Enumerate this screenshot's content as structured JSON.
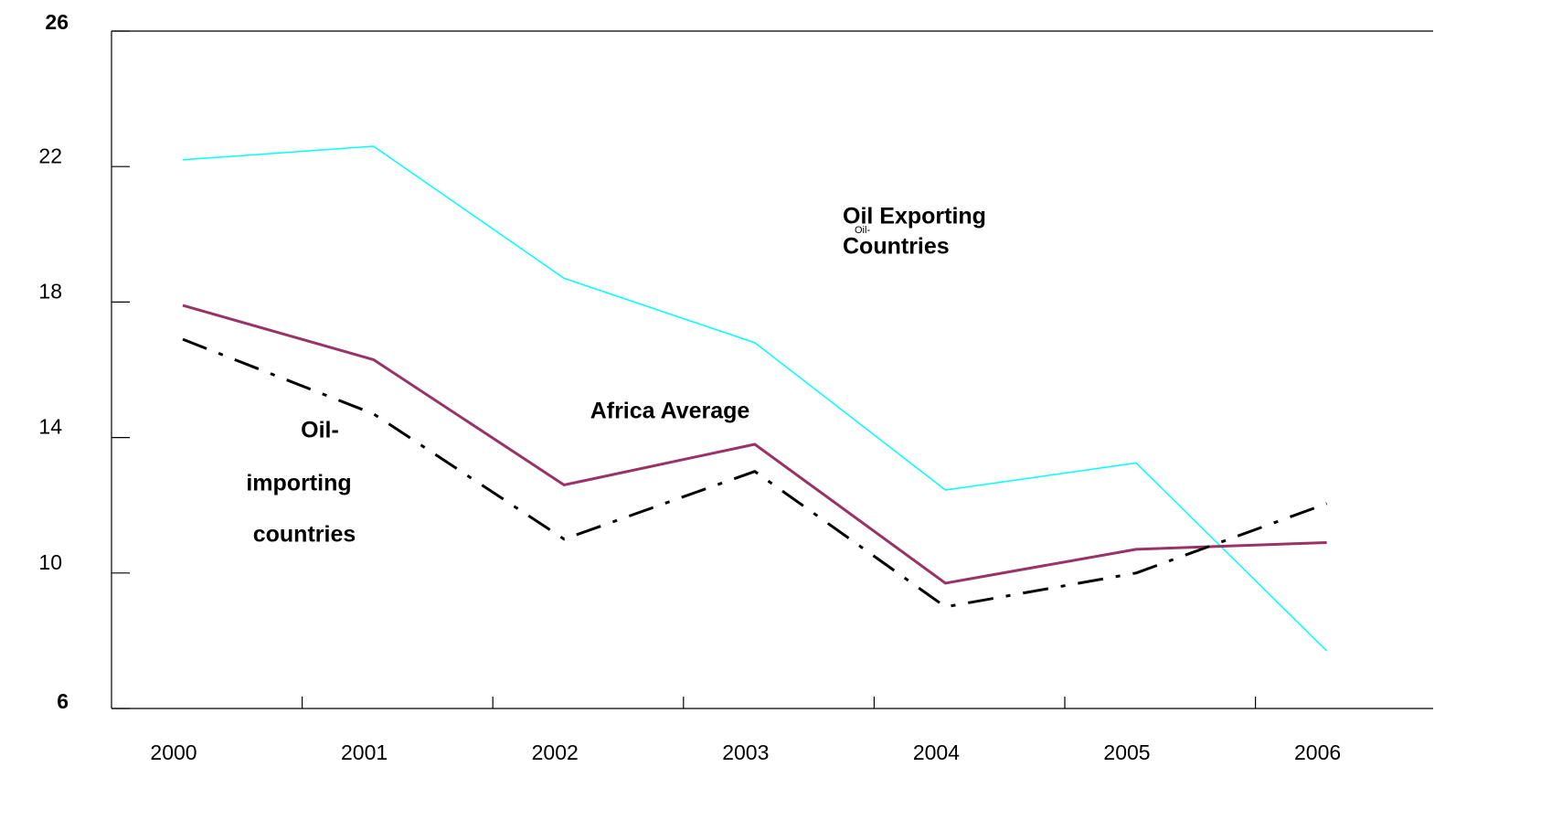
{
  "chart_data": {
    "type": "line",
    "categories": [
      "2000",
      "2001",
      "2002",
      "2003",
      "2004",
      "2005",
      "2006"
    ],
    "series": [
      {
        "name": "Oil Exporting Countries",
        "color": "#00ffff",
        "width": 1.5,
        "style": "solid",
        "values": [
          22.2,
          22.6,
          18.7,
          16.8,
          12.45,
          13.25,
          7.7
        ]
      },
      {
        "name": "Africa Average",
        "color": "#993366",
        "width": 3,
        "style": "solid",
        "values": [
          17.9,
          16.3,
          12.6,
          13.8,
          9.7,
          10.7,
          10.9
        ]
      },
      {
        "name": "Oil-importing countries",
        "color": "#000000",
        "width": 3,
        "style": "dash-dot",
        "values": [
          16.9,
          14.7,
          11.0,
          13.0,
          9.0,
          10.0,
          12.05
        ]
      }
    ],
    "annotations": [
      "Oil Exporting",
      "Countries",
      "Oil-",
      "Africa Average",
      "Oil-",
      "importing",
      "countries"
    ],
    "ylim": [
      6,
      26
    ],
    "yticks": [
      6,
      10,
      14,
      18,
      22,
      26
    ],
    "grid": false
  }
}
